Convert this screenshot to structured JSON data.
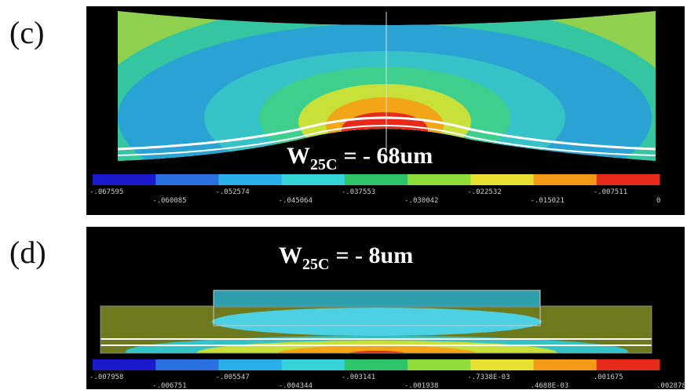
{
  "panels": [
    {
      "label": "(c)",
      "warpage": {
        "symbol": "W",
        "subscript": "25C",
        "value": "= - 68um"
      },
      "legend_top": [
        "-.067595",
        "-.052574",
        "-.037553",
        "-.022532",
        "-.007511"
      ],
      "legend_bottom": [
        "-.060085",
        "-.045064",
        "-.030042",
        "-.015021",
        "0"
      ]
    },
    {
      "label": "(d)",
      "warpage": {
        "symbol": "W",
        "subscript": "25C",
        "value": "= - 8um"
      },
      "legend_top": [
        "-.007958",
        "-.005547",
        "-.003141",
        "-.7338E-03",
        ".001675"
      ],
      "legend_bottom": [
        "-.006751",
        "-.004344",
        "-.001938",
        ".4688E-03",
        ".002878"
      ]
    }
  ]
}
